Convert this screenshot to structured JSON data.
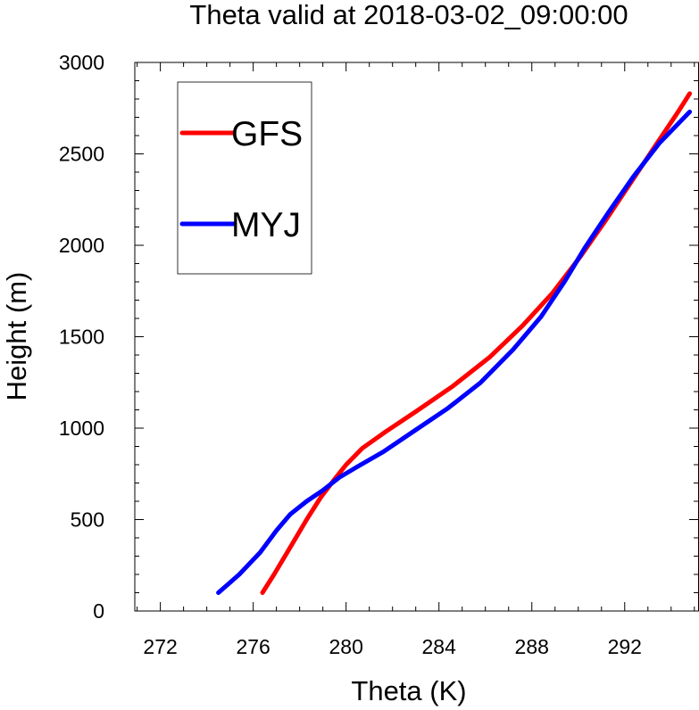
{
  "chart_data": {
    "type": "line",
    "title": "Theta valid at 2018-03-02_09:00:00",
    "xlabel": "Theta (K)",
    "ylabel": "Height (m)",
    "xlim": [
      270.9,
      295.2
    ],
    "ylim": [
      0,
      3000
    ],
    "xticks": [
      272,
      276,
      280,
      284,
      288,
      292
    ],
    "yticks": [
      0,
      500,
      1000,
      1500,
      2000,
      2500,
      3000
    ],
    "x_minor_step": 1,
    "y_minor_step": 100,
    "grid": false,
    "legend_position": "top-left",
    "series": [
      {
        "name": "GFS",
        "color": "#ff0000",
        "points": [
          [
            276.4,
            100
          ],
          [
            276.9,
            200
          ],
          [
            277.6,
            350
          ],
          [
            278.3,
            500
          ],
          [
            278.9,
            620
          ],
          [
            279.5,
            720
          ],
          [
            280.0,
            800
          ],
          [
            280.7,
            890
          ],
          [
            281.7,
            980
          ],
          [
            283.0,
            1090
          ],
          [
            284.6,
            1230
          ],
          [
            286.2,
            1390
          ],
          [
            287.6,
            1560
          ],
          [
            288.9,
            1740
          ],
          [
            290.1,
            1940
          ],
          [
            291.2,
            2140
          ],
          [
            292.3,
            2350
          ],
          [
            293.4,
            2560
          ],
          [
            294.3,
            2730
          ],
          [
            294.8,
            2830
          ]
        ]
      },
      {
        "name": "MYJ",
        "color": "#0000ff",
        "points": [
          [
            274.5,
            100
          ],
          [
            275.4,
            200
          ],
          [
            276.3,
            320
          ],
          [
            277.0,
            440
          ],
          [
            277.6,
            530
          ],
          [
            278.3,
            600
          ],
          [
            279.0,
            660
          ],
          [
            279.7,
            730
          ],
          [
            280.5,
            790
          ],
          [
            281.6,
            870
          ],
          [
            283.0,
            990
          ],
          [
            284.4,
            1110
          ],
          [
            285.8,
            1250
          ],
          [
            287.2,
            1430
          ],
          [
            288.4,
            1610
          ],
          [
            289.4,
            1800
          ],
          [
            290.3,
            1990
          ],
          [
            291.3,
            2180
          ],
          [
            292.4,
            2380
          ],
          [
            293.5,
            2560
          ],
          [
            294.8,
            2730
          ]
        ]
      }
    ]
  }
}
